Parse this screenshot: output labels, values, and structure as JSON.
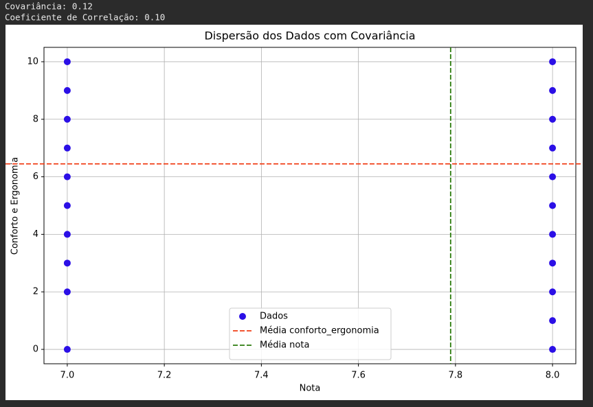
{
  "output_lines": [
    "Covariância: 0.12",
    "Coeficiente de Correlação: 0.10"
  ],
  "chart_data": {
    "type": "scatter",
    "title": "Dispersão dos Dados com Covariância",
    "x_label": "Nota",
    "y_label": "Conforto e Ergonomia",
    "series": [
      {
        "name": "Dados",
        "color": "#2b0fe6",
        "x": [
          7,
          7,
          7,
          7,
          7,
          7,
          7,
          7,
          7,
          7,
          8,
          8,
          8,
          8,
          8,
          8,
          8,
          8,
          8,
          8,
          8
        ],
        "values": [
          0,
          2,
          3,
          4,
          5,
          6,
          7,
          8,
          9,
          10,
          0,
          1,
          2,
          3,
          4,
          5,
          6,
          7,
          8,
          9,
          10
        ]
      }
    ],
    "reference_lines": [
      {
        "name": "Média conforto_ergonomia",
        "axis": "y",
        "value": 6.45,
        "color": "#f03c14"
      },
      {
        "name": "Média nota",
        "axis": "x",
        "value": 7.79,
        "color": "#2a7a0a"
      }
    ],
    "xlim": [
      6.952,
      8.048
    ],
    "ylim": [
      -0.5,
      10.5
    ],
    "xticks": [
      {
        "value": 7,
        "label": "7.0"
      },
      7.2,
      7.4,
      7.6,
      7.8,
      {
        "value": 8,
        "label": "8.0"
      }
    ],
    "yticks": [
      0,
      2,
      4,
      6,
      8,
      10
    ],
    "grid": true,
    "legend": "lower center"
  }
}
